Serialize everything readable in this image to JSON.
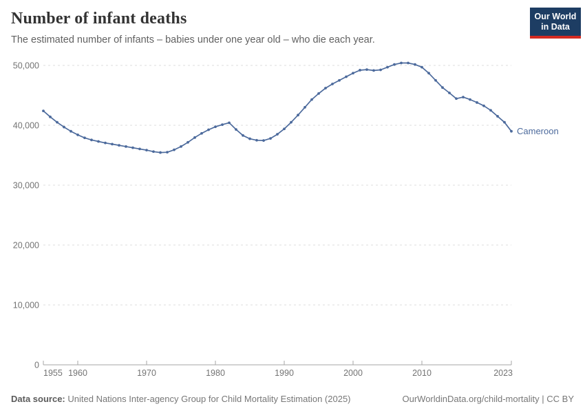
{
  "header": {
    "title": "Number of infant deaths",
    "subtitle": "The estimated number of infants – babies under one year old – who die each year."
  },
  "logo": {
    "line1": "Our World",
    "line2": "in Data",
    "bg_color": "#1d3d63",
    "accent_color": "#d42b21"
  },
  "chart_data": {
    "type": "line",
    "title": "Number of infant deaths",
    "xlabel": "",
    "ylabel": "",
    "ylim": [
      0,
      50000
    ],
    "xlim": [
      1955,
      2023
    ],
    "grid": "horizontal-dashed",
    "legend_position": "end-of-line-label",
    "yticks": [
      0,
      10000,
      20000,
      30000,
      40000,
      50000
    ],
    "ytick_labels": [
      "0",
      "10,000",
      "20,000",
      "30,000",
      "40,000",
      "50,000"
    ],
    "xticks": [
      1955,
      1960,
      1970,
      1980,
      1990,
      2000,
      2010,
      2023
    ],
    "xtick_labels": [
      "1955",
      "1960",
      "1970",
      "1980",
      "1990",
      "2000",
      "2010",
      "2023"
    ],
    "series": [
      {
        "name": "Cameroon",
        "color": "#4c6a9c",
        "x": [
          1955,
          1956,
          1957,
          1958,
          1959,
          1960,
          1961,
          1962,
          1963,
          1964,
          1965,
          1966,
          1967,
          1968,
          1969,
          1970,
          1971,
          1972,
          1973,
          1974,
          1975,
          1976,
          1977,
          1978,
          1979,
          1980,
          1981,
          1982,
          1983,
          1984,
          1985,
          1986,
          1987,
          1988,
          1989,
          1990,
          1991,
          1992,
          1993,
          1994,
          1995,
          1996,
          1997,
          1998,
          1999,
          2000,
          2001,
          2002,
          2003,
          2004,
          2005,
          2006,
          2007,
          2008,
          2009,
          2010,
          2011,
          2012,
          2013,
          2014,
          2015,
          2016,
          2017,
          2018,
          2019,
          2020,
          2021,
          2022,
          2023
        ],
        "values": [
          42400,
          41400,
          40500,
          39700,
          39000,
          38400,
          37900,
          37550,
          37300,
          37050,
          36850,
          36650,
          36450,
          36250,
          36050,
          35850,
          35600,
          35450,
          35500,
          35900,
          36450,
          37150,
          37950,
          38650,
          39250,
          39750,
          40100,
          40420,
          39300,
          38300,
          37750,
          37500,
          37450,
          37800,
          38500,
          39400,
          40500,
          41700,
          43000,
          44300,
          45300,
          46200,
          46900,
          47500,
          48100,
          48700,
          49200,
          49300,
          49150,
          49250,
          49700,
          50150,
          50400,
          50400,
          50150,
          49700,
          48700,
          47500,
          46300,
          45400,
          44450,
          44700,
          44300,
          43800,
          43250,
          42500,
          41500,
          40500,
          39000
        ]
      }
    ]
  },
  "colors": {
    "gridline": "#dedede",
    "axis": "#a5a5a5",
    "tick_label": "#737373",
    "line": "#4c6a9c"
  },
  "footer": {
    "source_label": "Data source:",
    "source_text": "United Nations Inter-agency Group for Child Mortality Estimation (2025)",
    "link": "OurWorldinData.org/child-mortality",
    "separator": " | ",
    "license": "CC BY"
  }
}
